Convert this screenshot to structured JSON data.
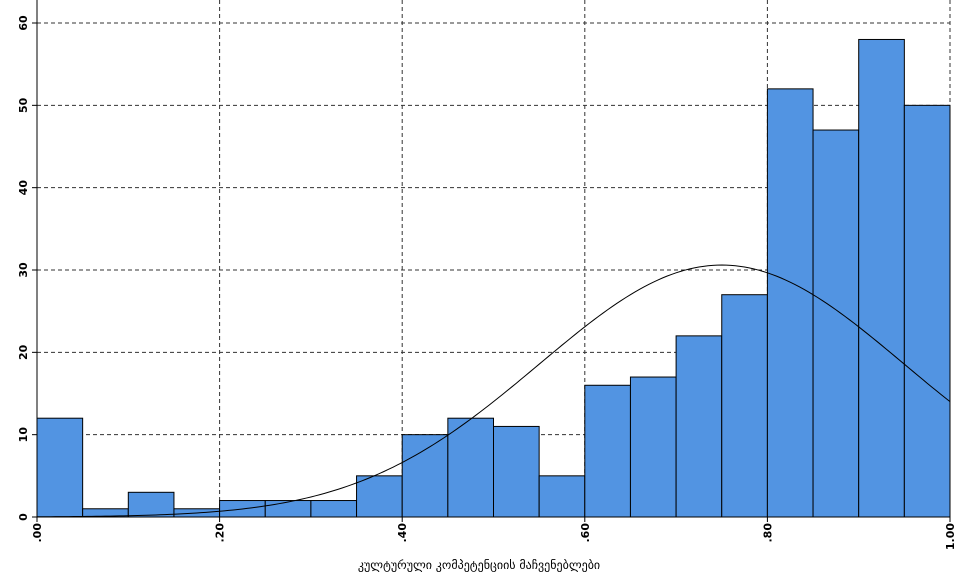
{
  "chart_data": {
    "type": "bar",
    "title": "",
    "xlabel": "კულტურული კომპეტენციის მაჩვენებლები",
    "ylabel": "",
    "xlim": [
      0,
      1
    ],
    "ylim": [
      0,
      60
    ],
    "bin_width": 0.05,
    "bins": [
      0.0,
      0.05,
      0.1,
      0.15,
      0.2,
      0.25,
      0.3,
      0.35,
      0.4,
      0.45,
      0.5,
      0.55,
      0.6,
      0.65,
      0.7,
      0.75,
      0.8,
      0.85,
      0.9,
      0.95
    ],
    "values": [
      12,
      1,
      3,
      1,
      2,
      2,
      2,
      5,
      10,
      12,
      11,
      5,
      16,
      17,
      22,
      27,
      52,
      47,
      58,
      50
    ],
    "x_ticks": [
      ".00",
      ".20",
      ".40",
      ".60",
      ".80",
      "1.00"
    ],
    "y_ticks": [
      "0",
      "10",
      "20",
      "30",
      "40",
      "50",
      "60"
    ],
    "grid": true,
    "normal_curve": {
      "mean": 0.75,
      "sd": 0.2,
      "peak": 30.6
    },
    "bar_color": "#5294e2",
    "bar_edge_color": "#000000",
    "curve_color": "#000000"
  }
}
